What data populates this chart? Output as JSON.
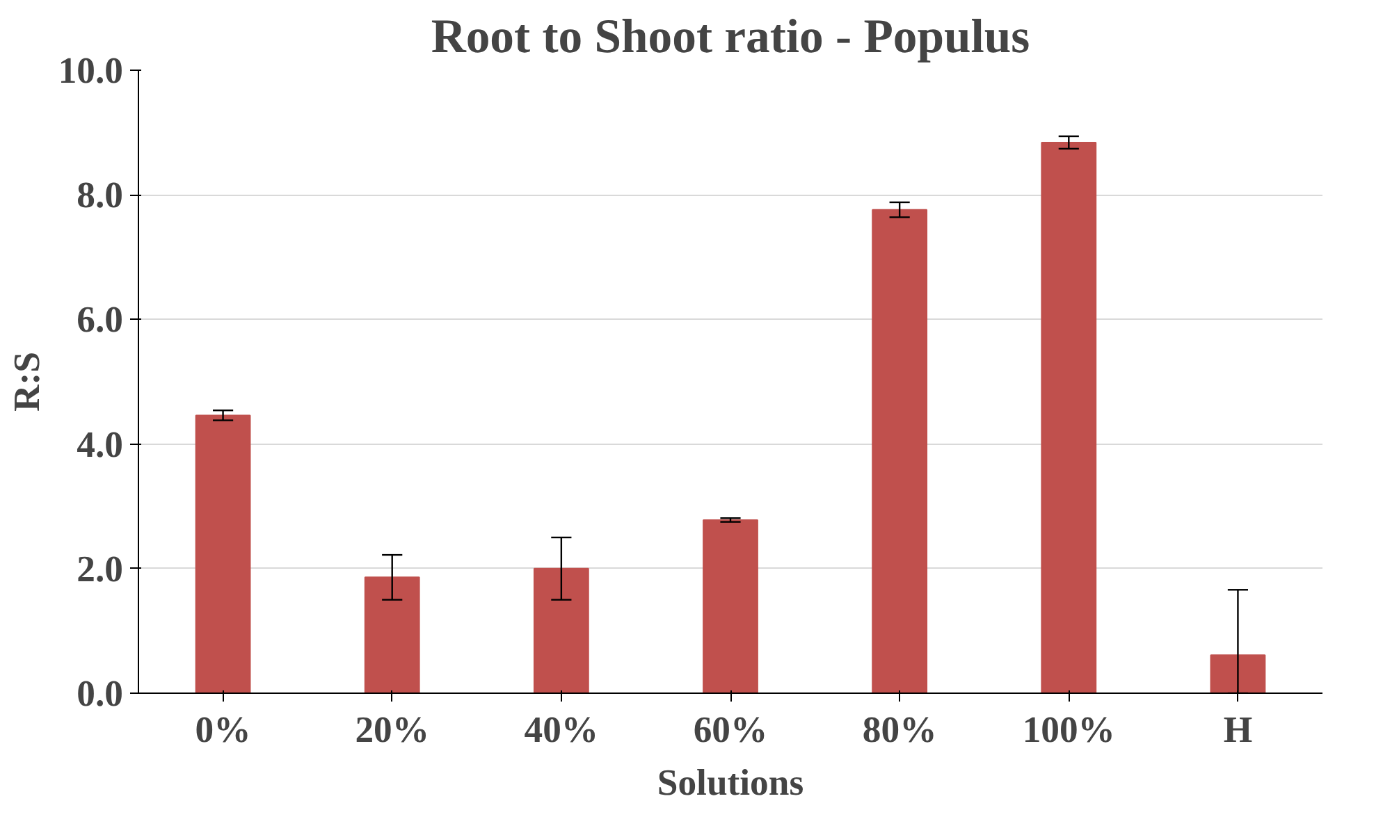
{
  "chart_data": {
    "type": "bar",
    "title": "Root to Shoot ratio - Populus",
    "xlabel": "Solutions",
    "ylabel": "R:S",
    "categories": [
      "0%",
      "20%",
      "40%",
      "60%",
      "80%",
      "100%",
      "H"
    ],
    "values": [
      4.46,
      1.86,
      2.0,
      2.78,
      7.76,
      8.84,
      0.61
    ],
    "errors": [
      0.08,
      0.36,
      0.5,
      0.03,
      0.12,
      0.1,
      [
        0.0,
        1.66
      ]
    ],
    "color": "#c0504d",
    "ylim": [
      0,
      10
    ],
    "yticks": [
      {
        "value": 0,
        "label": "0.0"
      },
      {
        "value": 2,
        "label": "2.0"
      },
      {
        "value": 4,
        "label": "4.0"
      },
      {
        "value": 6,
        "label": "6.0"
      },
      {
        "value": 8,
        "label": "8.0"
      },
      {
        "value": 10,
        "label": "10.0"
      }
    ],
    "grid": "y"
  }
}
